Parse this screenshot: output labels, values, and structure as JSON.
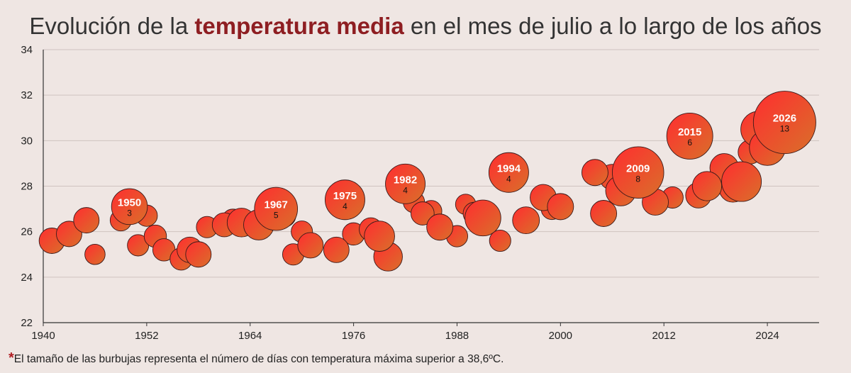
{
  "title": {
    "pre": "Evolución de la ",
    "highlight": "temperatura media",
    "post": " en el mes de julio a lo largo de los años"
  },
  "footnote": {
    "star": "*",
    "text": "El tamaño de las burbujas representa el número de días con temperatura máxima superior a 38,6ºC."
  },
  "colors": {
    "background": "#efe6e3",
    "bubble_light": "#ff2d30",
    "bubble_dark": "#d9702a",
    "title_highlight": "#8e1e22",
    "grid": "#cfc3c0"
  },
  "chart_data": {
    "type": "bubble",
    "xlim": [
      1940,
      2030
    ],
    "ylim": [
      22,
      34
    ],
    "x_ticks": [
      "1940",
      "1952",
      "1964",
      "1976",
      "1988",
      "2000",
      "2012",
      "2024"
    ],
    "y_ticks": [
      "22",
      "24",
      "26",
      "28",
      "30",
      "32",
      "34"
    ],
    "grid": "horizontal",
    "points": [
      {
        "year": 1941,
        "temp": 25.6,
        "days": 1
      },
      {
        "year": 1943,
        "temp": 25.9,
        "days": 1
      },
      {
        "year": 1945,
        "temp": 26.5,
        "days": 1
      },
      {
        "year": 1946,
        "temp": 25.0,
        "days": 0.4
      },
      {
        "year": 1949,
        "temp": 26.5,
        "days": 0.5
      },
      {
        "year": 1950,
        "temp": 27.1,
        "days": 3,
        "label": "1950",
        "days_label": "3"
      },
      {
        "year": 1951,
        "temp": 25.4,
        "days": 0.5
      },
      {
        "year": 1952,
        "temp": 26.7,
        "days": 0.5
      },
      {
        "year": 1953,
        "temp": 25.8,
        "days": 0.6
      },
      {
        "year": 1954,
        "temp": 25.2,
        "days": 0.6
      },
      {
        "year": 1956,
        "temp": 24.8,
        "days": 0.6
      },
      {
        "year": 1957,
        "temp": 25.2,
        "days": 1
      },
      {
        "year": 1958,
        "temp": 25.0,
        "days": 1
      },
      {
        "year": 1959,
        "temp": 26.2,
        "days": 0.5
      },
      {
        "year": 1961,
        "temp": 26.3,
        "days": 0.8
      },
      {
        "year": 1962,
        "temp": 26.5,
        "days": 0.6
      },
      {
        "year": 1963,
        "temp": 26.4,
        "days": 1.5
      },
      {
        "year": 1965,
        "temp": 26.3,
        "days": 1.8
      },
      {
        "year": 1967,
        "temp": 27.0,
        "days": 5,
        "label": "1967",
        "days_label": "5"
      },
      {
        "year": 1968,
        "temp": 26.7,
        "days": 0.6
      },
      {
        "year": 1969,
        "temp": 25.0,
        "days": 0.5
      },
      {
        "year": 1970,
        "temp": 26.0,
        "days": 0.5
      },
      {
        "year": 1971,
        "temp": 25.4,
        "days": 1
      },
      {
        "year": 1974,
        "temp": 25.2,
        "days": 1
      },
      {
        "year": 1975,
        "temp": 27.4,
        "days": 4,
        "label": "1975",
        "days_label": "4"
      },
      {
        "year": 1976,
        "temp": 25.9,
        "days": 0.6
      },
      {
        "year": 1978,
        "temp": 26.1,
        "days": 0.7
      },
      {
        "year": 1979,
        "temp": 25.8,
        "days": 1.8
      },
      {
        "year": 1980,
        "temp": 24.9,
        "days": 1.5
      },
      {
        "year": 1982,
        "temp": 28.1,
        "days": 4,
        "label": "1982",
        "days_label": "4"
      },
      {
        "year": 1983,
        "temp": 27.3,
        "days": 0.5
      },
      {
        "year": 1984,
        "temp": 26.8,
        "days": 0.7
      },
      {
        "year": 1985,
        "temp": 26.9,
        "days": 0.5
      },
      {
        "year": 1986,
        "temp": 26.2,
        "days": 1.1
      },
      {
        "year": 1988,
        "temp": 25.8,
        "days": 0.5
      },
      {
        "year": 1989,
        "temp": 27.2,
        "days": 0.4
      },
      {
        "year": 1990,
        "temp": 26.8,
        "days": 0.6
      },
      {
        "year": 1991,
        "temp": 26.6,
        "days": 3
      },
      {
        "year": 1993,
        "temp": 25.6,
        "days": 0.5
      },
      {
        "year": 1994,
        "temp": 28.6,
        "days": 4,
        "label": "1994",
        "days_label": "4"
      },
      {
        "year": 1996,
        "temp": 26.5,
        "days": 1.2
      },
      {
        "year": 1998,
        "temp": 27.5,
        "days": 1.1
      },
      {
        "year": 1999,
        "temp": 27.0,
        "days": 0.5
      },
      {
        "year": 2000,
        "temp": 27.1,
        "days": 1.1
      },
      {
        "year": 2004,
        "temp": 28.6,
        "days": 1.1
      },
      {
        "year": 2005,
        "temp": 26.8,
        "days": 1.1
      },
      {
        "year": 2006,
        "temp": 28.4,
        "days": 1
      },
      {
        "year": 2007,
        "temp": 27.8,
        "days": 1.8
      },
      {
        "year": 2009,
        "temp": 28.6,
        "days": 8,
        "label": "2009",
        "days_label": "8"
      },
      {
        "year": 2011,
        "temp": 27.3,
        "days": 1.1
      },
      {
        "year": 2013,
        "temp": 27.5,
        "days": 0.5
      },
      {
        "year": 2015,
        "temp": 30.2,
        "days": 6,
        "label": "2015",
        "days_label": "6"
      },
      {
        "year": 2016,
        "temp": 27.6,
        "days": 1
      },
      {
        "year": 2017,
        "temp": 28.0,
        "days": 1.6
      },
      {
        "year": 2019,
        "temp": 28.8,
        "days": 1.5
      },
      {
        "year": 2020,
        "temp": 27.9,
        "days": 1.3
      },
      {
        "year": 2021,
        "temp": 28.2,
        "days": 4
      },
      {
        "year": 2022,
        "temp": 29.5,
        "days": 0.8
      },
      {
        "year": 2023,
        "temp": 30.5,
        "days": 3
      },
      {
        "year": 2024,
        "temp": 29.7,
        "days": 3
      },
      {
        "year": 2026,
        "temp": 30.8,
        "days": 13,
        "label": "2026",
        "days_label": "13"
      }
    ]
  }
}
